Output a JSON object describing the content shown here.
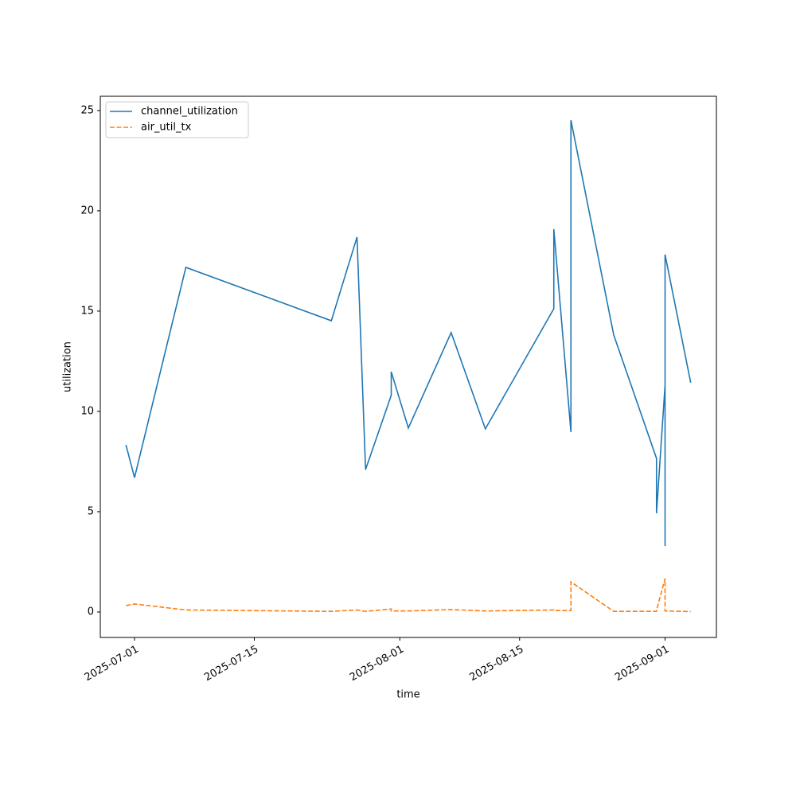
{
  "chart_data": {
    "type": "line",
    "x_label": "time",
    "y_label": "utilization",
    "x": [
      "2025-06-30",
      "2025-07-01",
      "2025-07-07",
      "2025-07-24",
      "2025-07-27",
      "2025-07-28",
      "2025-07-31",
      "2025-07-31",
      "2025-08-02",
      "2025-08-07",
      "2025-08-11",
      "2025-08-19",
      "2025-08-19",
      "2025-08-21",
      "2025-08-21",
      "2025-08-26",
      "2025-08-31",
      "2025-08-31",
      "2025-09-01",
      "2025-09-01",
      "2025-09-01",
      "2025-09-04"
    ],
    "series": [
      {
        "name": "channel_utilization",
        "color": "#1f77b4",
        "dash": false,
        "values": [
          8.33,
          6.7,
          17.18,
          14.52,
          18.69,
          7.1,
          10.8,
          11.98,
          9.17,
          13.93,
          9.13,
          15.12,
          19.09,
          8.97,
          24.52,
          13.81,
          7.66,
          4.92,
          11.31,
          3.29,
          17.82,
          11.43
        ]
      },
      {
        "name": "air_util_tx",
        "color": "#ff7f0e",
        "dash": true,
        "values": [
          0.32,
          0.4,
          0.1,
          0.03,
          0.1,
          0.03,
          0.15,
          0.05,
          0.05,
          0.12,
          0.05,
          0.1,
          0.07,
          0.07,
          1.5,
          0.03,
          0.03,
          0.08,
          1.67,
          0.05,
          0.05,
          0.02
        ]
      }
    ],
    "xlim": [
      "2025-06-27",
      "2025-09-07"
    ],
    "xticks": [
      "2025-07-01",
      "2025-07-15",
      "2025-08-01",
      "2025-08-15",
      "2025-09-01"
    ],
    "ylim": [
      -1.27,
      25.71
    ],
    "yticks": [
      0,
      5,
      10,
      15,
      20,
      25
    ],
    "grid": false,
    "legend": "upper left"
  }
}
